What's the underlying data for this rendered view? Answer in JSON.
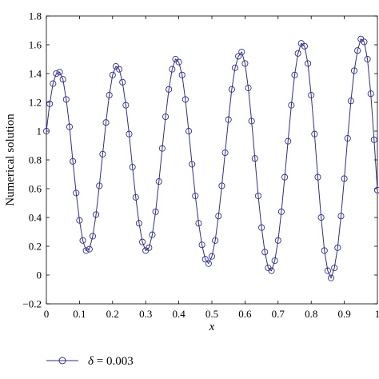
{
  "chart_data": {
    "type": "line",
    "title": "",
    "xlabel": "x",
    "ylabel": "Numerical solution",
    "xlim": [
      0,
      1
    ],
    "ylim": [
      -0.2,
      1.8
    ],
    "xticks": [
      "0",
      "0.1",
      "0.2",
      "0.3",
      "0.4",
      "0.5",
      "0.6",
      "0.7",
      "0.8",
      "0.9",
      "1"
    ],
    "yticks": [
      "−0.2",
      "0",
      "0.2",
      "0.4",
      "0.6",
      "0.8",
      "1",
      "1.2",
      "1.4",
      "1.6",
      "1.8"
    ],
    "grid": false,
    "legend_position": "bottom-left",
    "series": [
      {
        "name": "δ = 0.003",
        "color": "#2e2e8c",
        "marker": "circle-open",
        "x": [
          0.0,
          0.01,
          0.02,
          0.03,
          0.04,
          0.05,
          0.06,
          0.07,
          0.08,
          0.09,
          0.1,
          0.11,
          0.12,
          0.13,
          0.14,
          0.15,
          0.16,
          0.17,
          0.18,
          0.19,
          0.2,
          0.21,
          0.22,
          0.23,
          0.24,
          0.25,
          0.26,
          0.27,
          0.28,
          0.29,
          0.3,
          0.31,
          0.32,
          0.33,
          0.34,
          0.35,
          0.36,
          0.37,
          0.38,
          0.39,
          0.4,
          0.41,
          0.42,
          0.43,
          0.44,
          0.45,
          0.46,
          0.47,
          0.48,
          0.49,
          0.5,
          0.51,
          0.52,
          0.53,
          0.54,
          0.55,
          0.56,
          0.57,
          0.58,
          0.59,
          0.6,
          0.61,
          0.62,
          0.63,
          0.64,
          0.65,
          0.66,
          0.67,
          0.68,
          0.69,
          0.7,
          0.71,
          0.72,
          0.73,
          0.74,
          0.75,
          0.76,
          0.77,
          0.78,
          0.79,
          0.8,
          0.81,
          0.82,
          0.83,
          0.84,
          0.85,
          0.86,
          0.87,
          0.88,
          0.89,
          0.9,
          0.91,
          0.92,
          0.93,
          0.94,
          0.95,
          0.96,
          0.97,
          0.98,
          0.99,
          1.0
        ],
        "y": [
          1.0,
          1.19,
          1.33,
          1.4,
          1.41,
          1.36,
          1.22,
          1.03,
          0.79,
          0.57,
          0.38,
          0.24,
          0.17,
          0.18,
          0.27,
          0.42,
          0.62,
          0.84,
          1.06,
          1.25,
          1.39,
          1.45,
          1.43,
          1.34,
          1.18,
          0.98,
          0.75,
          0.54,
          0.36,
          0.23,
          0.17,
          0.19,
          0.28,
          0.44,
          0.65,
          0.88,
          1.1,
          1.29,
          1.43,
          1.5,
          1.48,
          1.39,
          1.22,
          1.0,
          0.77,
          0.55,
          0.36,
          0.21,
          0.11,
          0.08,
          0.13,
          0.24,
          0.41,
          0.62,
          0.85,
          1.08,
          1.29,
          1.44,
          1.52,
          1.55,
          1.47,
          1.3,
          1.07,
          0.81,
          0.55,
          0.33,
          0.16,
          0.05,
          0.03,
          0.1,
          0.24,
          0.44,
          0.68,
          0.93,
          1.18,
          1.39,
          1.54,
          1.61,
          1.59,
          1.47,
          1.25,
          0.98,
          0.68,
          0.4,
          0.17,
          0.03,
          -0.02,
          0.05,
          0.19,
          0.41,
          0.67,
          0.95,
          1.21,
          1.42,
          1.56,
          1.64,
          1.62,
          1.5,
          1.26,
          0.94,
          0.59
        ]
      }
    ]
  }
}
